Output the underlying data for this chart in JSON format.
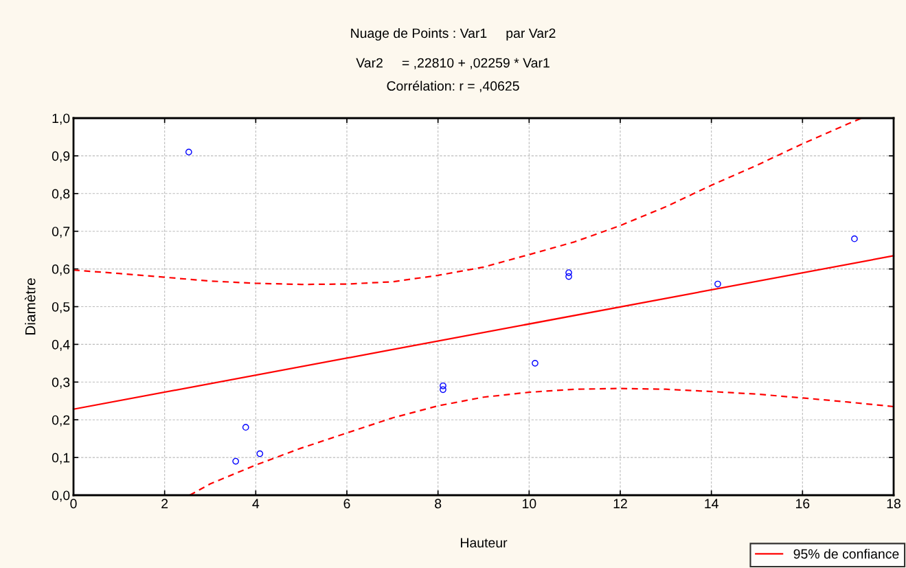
{
  "chart_data": {
    "type": "scatter",
    "title": "Nuage de Points : Var1     par Var2",
    "subtitle": "Var2     = ,22810 + ,02259 * Var1\nCorrélation: r = ,40625",
    "xlabel": "Hauteur",
    "ylabel": "Diamètre",
    "series": [
      {
        "color": "#0000ff",
        "marker": "circle",
        "x": [
          2.53,
          3.78,
          3.56,
          4.09,
          8.11,
          8.11,
          10.13,
          10.87,
          10.87,
          14.14,
          17.14
        ],
        "values": [
          0.91,
          0.18,
          0.09,
          0.11,
          0.29,
          0.28,
          0.35,
          0.59,
          0.58,
          0.56,
          0.68
        ]
      },
      {
        "type": "line",
        "color": "#ff0000",
        "line_style": "solid",
        "x": [
          0,
          18
        ],
        "values": [
          0.228,
          0.635
        ]
      },
      {
        "type": "line",
        "name": "95% de confiance",
        "color": "#ff0000",
        "line_style": "dashed",
        "x": [
          0,
          1,
          2,
          3,
          4,
          5,
          6,
          7,
          8,
          9,
          10,
          11,
          12,
          13,
          14,
          15,
          16,
          17,
          17.3
        ],
        "values": [
          0.597,
          0.588,
          0.578,
          0.568,
          0.562,
          0.559,
          0.56,
          0.566,
          0.583,
          0.605,
          0.638,
          0.672,
          0.715,
          0.765,
          0.822,
          0.875,
          0.932,
          0.985,
          1.0
        ]
      },
      {
        "type": "line",
        "color": "#ff0000",
        "line_style": "dashed",
        "x": [
          2.55,
          3,
          4,
          5,
          6,
          7,
          8,
          9,
          10,
          11,
          12,
          13,
          14,
          15,
          16,
          17,
          18
        ],
        "values": [
          0,
          0.03,
          0.08,
          0.125,
          0.165,
          0.205,
          0.237,
          0.26,
          0.273,
          0.281,
          0.283,
          0.281,
          0.275,
          0.268,
          0.258,
          0.247,
          0.235
        ]
      }
    ],
    "xlim": [
      0,
      18
    ],
    "xticks": [
      0,
      2,
      4,
      6,
      8,
      10,
      12,
      14,
      16,
      18
    ],
    "ylim": [
      0,
      1
    ],
    "yticks": [
      {
        "value": 0,
        "label": "0,0"
      },
      {
        "value": 0.1,
        "label": "0,1"
      },
      {
        "value": 0.2,
        "label": "0,2"
      },
      {
        "value": 0.3,
        "label": "0,3"
      },
      {
        "value": 0.4,
        "label": "0,4"
      },
      {
        "value": 0.5,
        "label": "0,5"
      },
      {
        "value": 0.6,
        "label": "0,6"
      },
      {
        "value": 0.7,
        "label": "0,7"
      },
      {
        "value": 0.8,
        "label": "0,8"
      },
      {
        "value": 0.9,
        "label": "0,9"
      },
      {
        "value": 1.0,
        "label": "1,0"
      }
    ],
    "grid": true,
    "legend": "bottom right"
  }
}
